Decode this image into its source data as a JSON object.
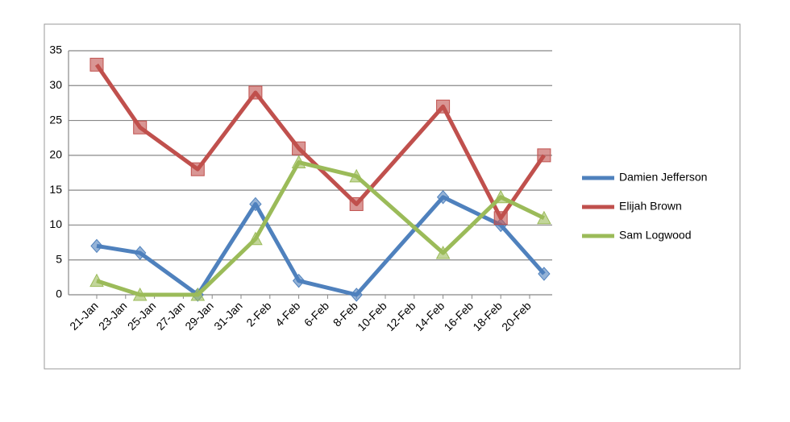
{
  "chart_data": {
    "type": "line",
    "x": [
      "21-Jan",
      "24-Jan",
      "28-Jan",
      "1-Feb",
      "4-Feb",
      "8-Feb",
      "14-Feb",
      "18-Feb",
      "21-Feb"
    ],
    "xticks": [
      "21-Jan",
      "23-Jan",
      "25-Jan",
      "27-Jan",
      "29-Jan",
      "31-Jan",
      "2-Feb",
      "4-Feb",
      "6-Feb",
      "8-Feb",
      "10-Feb",
      "12-Feb",
      "14-Feb",
      "16-Feb",
      "18-Feb",
      "20-Feb"
    ],
    "series": [
      {
        "name": "Damien Jefferson",
        "color": "#4f81bd",
        "marker": "diamond",
        "values": [
          7,
          6,
          0,
          13,
          2,
          0,
          14,
          10,
          3
        ]
      },
      {
        "name": "Elijah Brown",
        "color": "#c0504d",
        "marker": "square",
        "values": [
          33,
          24,
          18,
          29,
          21,
          13,
          27,
          11,
          20
        ]
      },
      {
        "name": "Sam Logwood",
        "color": "#9bbb59",
        "marker": "triangle",
        "values": [
          2,
          0,
          0,
          8,
          19,
          17,
          6,
          14,
          11
        ]
      }
    ],
    "ylim": [
      0,
      35
    ],
    "yticks": [
      0,
      5,
      10,
      15,
      20,
      25,
      30,
      35
    ],
    "grid": true,
    "legend": "right"
  }
}
